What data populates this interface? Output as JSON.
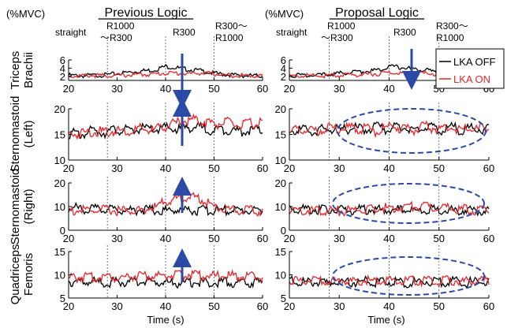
{
  "unit_label": "(%MVC)",
  "xlabel": "Time (s)",
  "legend": [
    {
      "label": "LKA OFF",
      "color": "#000000"
    },
    {
      "label": "LKA ON",
      "color": "#e8252b"
    }
  ],
  "phase_labels": {
    "straight": "straight",
    "r1000_r300": [
      "R1000",
      "〜R300"
    ],
    "r300": "R300",
    "r300_r1000": [
      "R300〜",
      "R1000"
    ]
  },
  "row_labels": [
    [
      "Triceps",
      "Brachii"
    ],
    [
      "Sternomastoid",
      "(Left)"
    ],
    [
      "Sternomastoid",
      "(Right)"
    ],
    [
      "Quadriceps",
      "Femoris"
    ]
  ],
  "columns": [
    {
      "title": "Previous Logic"
    },
    {
      "title": "Proposal Logic"
    }
  ],
  "colors": {
    "off": "#000000",
    "on": "#e8252b",
    "annotation": "#2b4aa6"
  },
  "chart_data": [
    {
      "type": "line",
      "panel": "previous-triceps",
      "title": "Previous Logic",
      "x": [
        20,
        22.5,
        25,
        27.5,
        30,
        32.5,
        35,
        37.5,
        40,
        42.5,
        45,
        47.5,
        50,
        52.5,
        55,
        57.5,
        60
      ],
      "xlim": [
        20,
        60
      ],
      "ylim": [
        1,
        6
      ],
      "yticks": [
        2,
        4,
        6
      ],
      "series": [
        {
          "name": "LKA OFF",
          "values": [
            2.5,
            2.4,
            2.5,
            2.6,
            2.9,
            3.3,
            3.6,
            3.8,
            4.7,
            4.3,
            3.9,
            3.6,
            3.0,
            2.7,
            2.5,
            2.4,
            2.4
          ]
        },
        {
          "name": "LKA ON",
          "values": [
            2.3,
            2.4,
            2.5,
            2.4,
            2.5,
            2.6,
            2.7,
            2.8,
            3.1,
            3.0,
            2.9,
            3.1,
            2.8,
            2.6,
            2.5,
            2.4,
            2.5
          ]
        }
      ]
    },
    {
      "type": "line",
      "panel": "previous-stern-left",
      "x": [
        20,
        22.5,
        25,
        27.5,
        30,
        32.5,
        35,
        37.5,
        40,
        42.5,
        45,
        47.5,
        50,
        52.5,
        55,
        57.5,
        60
      ],
      "xlim": [
        20,
        60
      ],
      "ylim": [
        10,
        20
      ],
      "yticks": [
        10,
        15,
        20
      ],
      "series": [
        {
          "name": "LKA OFF",
          "values": [
            15.8,
            15.5,
            16.3,
            16,
            16.5,
            16.2,
            16.7,
            16.4,
            16.8,
            16.5,
            17,
            16.8,
            16.3,
            16.6,
            16.1,
            16.4,
            16.2
          ]
        },
        {
          "name": "LKA ON",
          "values": [
            15.5,
            15.8,
            16.2,
            15.9,
            16.4,
            16.1,
            16.6,
            16.3,
            17.2,
            17.8,
            18.4,
            18.2,
            17.6,
            17.9,
            17.3,
            17.6,
            17.9
          ]
        }
      ]
    },
    {
      "type": "line",
      "panel": "previous-stern-right",
      "x": [
        20,
        22.5,
        25,
        27.5,
        30,
        32.5,
        35,
        37.5,
        40,
        42.5,
        45,
        47.5,
        50,
        52.5,
        55,
        57.5,
        60
      ],
      "xlim": [
        20,
        60
      ],
      "ylim": [
        0,
        20
      ],
      "yticks": [
        0,
        10,
        20
      ],
      "series": [
        {
          "name": "LKA OFF",
          "values": [
            10.5,
            10.3,
            9.9,
            10,
            9.8,
            9.6,
            9.9,
            9.6,
            9.4,
            9.8,
            9.6,
            9.4,
            9.5,
            9.6,
            9.4,
            9.5,
            9.3
          ]
        },
        {
          "name": "LKA ON",
          "values": [
            9.2,
            9.5,
            9.3,
            9.6,
            9.4,
            9.2,
            9.8,
            10.4,
            13.2,
            14.5,
            15.2,
            14.3,
            11,
            10,
            9.6,
            9.3,
            9.2
          ]
        }
      ]
    },
    {
      "type": "line",
      "panel": "previous-quadriceps",
      "x": [
        20,
        22.5,
        25,
        27.5,
        30,
        32.5,
        35,
        37.5,
        40,
        42.5,
        45,
        47.5,
        50,
        52.5,
        55,
        57.5,
        60
      ],
      "xlim": [
        20,
        60
      ],
      "ylim": [
        5,
        15
      ],
      "yticks": [
        5,
        10,
        15
      ],
      "series": [
        {
          "name": "LKA OFF",
          "values": [
            9.2,
            8.9,
            9.1,
            8.7,
            9.0,
            8.8,
            9.2,
            8.9,
            9.0,
            8.7,
            8.9,
            9.0,
            8.8,
            9.1,
            8.7,
            8.9,
            8.8
          ]
        },
        {
          "name": "LKA ON",
          "values": [
            9.8,
            10.1,
            9.9,
            10.3,
            10.0,
            10.2,
            10.5,
            10.1,
            10.6,
            10.3,
            10.8,
            10.4,
            10.2,
            10.5,
            10.1,
            10.3,
            10.0
          ]
        }
      ]
    },
    {
      "type": "line",
      "panel": "proposal-triceps",
      "title": "Proposal Logic",
      "x": [
        20,
        22.5,
        25,
        27.5,
        30,
        32.5,
        35,
        37.5,
        40,
        42.5,
        45,
        47.5,
        50,
        52.5,
        55,
        57.5,
        60
      ],
      "xlim": [
        20,
        60
      ],
      "ylim": [
        1,
        6
      ],
      "yticks": [
        2,
        4,
        6
      ],
      "series": [
        {
          "name": "LKA OFF",
          "values": [
            2.5,
            2.6,
            2.4,
            2.7,
            3.0,
            3.2,
            3.5,
            3.7,
            4.8,
            4.4,
            4.0,
            3.8,
            2.9,
            2.7,
            2.6,
            2.5,
            2.4
          ]
        },
        {
          "name": "LKA ON",
          "values": [
            2.3,
            2.4,
            2.5,
            2.4,
            2.5,
            2.6,
            2.7,
            2.9,
            3.2,
            3.0,
            2.9,
            3.0,
            2.8,
            2.6,
            2.5,
            2.4,
            2.5
          ]
        }
      ]
    },
    {
      "type": "line",
      "panel": "proposal-stern-left",
      "x": [
        20,
        22.5,
        25,
        27.5,
        30,
        32.5,
        35,
        37.5,
        40,
        42.5,
        45,
        47.5,
        50,
        52.5,
        55,
        57.5,
        60
      ],
      "xlim": [
        20,
        60
      ],
      "ylim": [
        10,
        20
      ],
      "yticks": [
        10,
        15,
        20
      ],
      "series": [
        {
          "name": "LKA OFF",
          "values": [
            16.2,
            16.5,
            16.1,
            16.6,
            16.3,
            16.8,
            16.5,
            16.9,
            16.6,
            17.0,
            16.7,
            16.9,
            16.5,
            16.8,
            16.4,
            16.7,
            16.5
          ]
        },
        {
          "name": "LKA ON",
          "values": [
            16.0,
            16.4,
            16.2,
            16.7,
            16.4,
            16.9,
            16.6,
            16.2,
            17.0,
            16.8,
            16.4,
            17.1,
            16.6,
            16.9,
            16.5,
            16.6,
            16.8
          ]
        }
      ]
    },
    {
      "type": "line",
      "panel": "proposal-stern-right",
      "x": [
        20,
        22.5,
        25,
        27.5,
        30,
        32.5,
        35,
        37.5,
        40,
        42.5,
        45,
        47.5,
        50,
        52.5,
        55,
        57.5,
        60
      ],
      "xlim": [
        20,
        60
      ],
      "ylim": [
        0,
        20
      ],
      "yticks": [
        0,
        10,
        20
      ],
      "series": [
        {
          "name": "LKA OFF",
          "values": [
            10.5,
            10.2,
            10.0,
            9.8,
            9.7,
            9.5,
            9.8,
            9.6,
            9.5,
            9.7,
            9.4,
            9.6,
            9.5,
            9.3,
            9.6,
            9.4,
            9.5
          ]
        },
        {
          "name": "LKA ON",
          "values": [
            9.5,
            9.7,
            9.4,
            9.6,
            9.3,
            9.5,
            9.8,
            10.2,
            10.6,
            11.0,
            11.2,
            10.8,
            10.4,
            10.1,
            9.8,
            9.6,
            9.5
          ]
        }
      ]
    },
    {
      "type": "line",
      "panel": "proposal-quadriceps",
      "x": [
        20,
        22.5,
        25,
        27.5,
        30,
        32.5,
        35,
        37.5,
        40,
        42.5,
        45,
        47.5,
        50,
        52.5,
        55,
        57.5,
        60
      ],
      "xlim": [
        20,
        60
      ],
      "ylim": [
        5,
        15
      ],
      "yticks": [
        5,
        10,
        15
      ],
      "series": [
        {
          "name": "LKA OFF",
          "values": [
            9.3,
            9.0,
            9.2,
            8.8,
            9.1,
            8.9,
            9.2,
            8.9,
            9.1,
            8.8,
            9.0,
            9.1,
            8.9,
            9.2,
            8.9,
            9.0,
            8.9
          ]
        },
        {
          "name": "LKA ON",
          "values": [
            9.5,
            9.2,
            9.4,
            9.0,
            9.3,
            9.1,
            9.4,
            9.1,
            9.3,
            9.0,
            9.2,
            9.3,
            9.1,
            9.4,
            9.0,
            9.2,
            9.1
          ]
        }
      ]
    }
  ]
}
